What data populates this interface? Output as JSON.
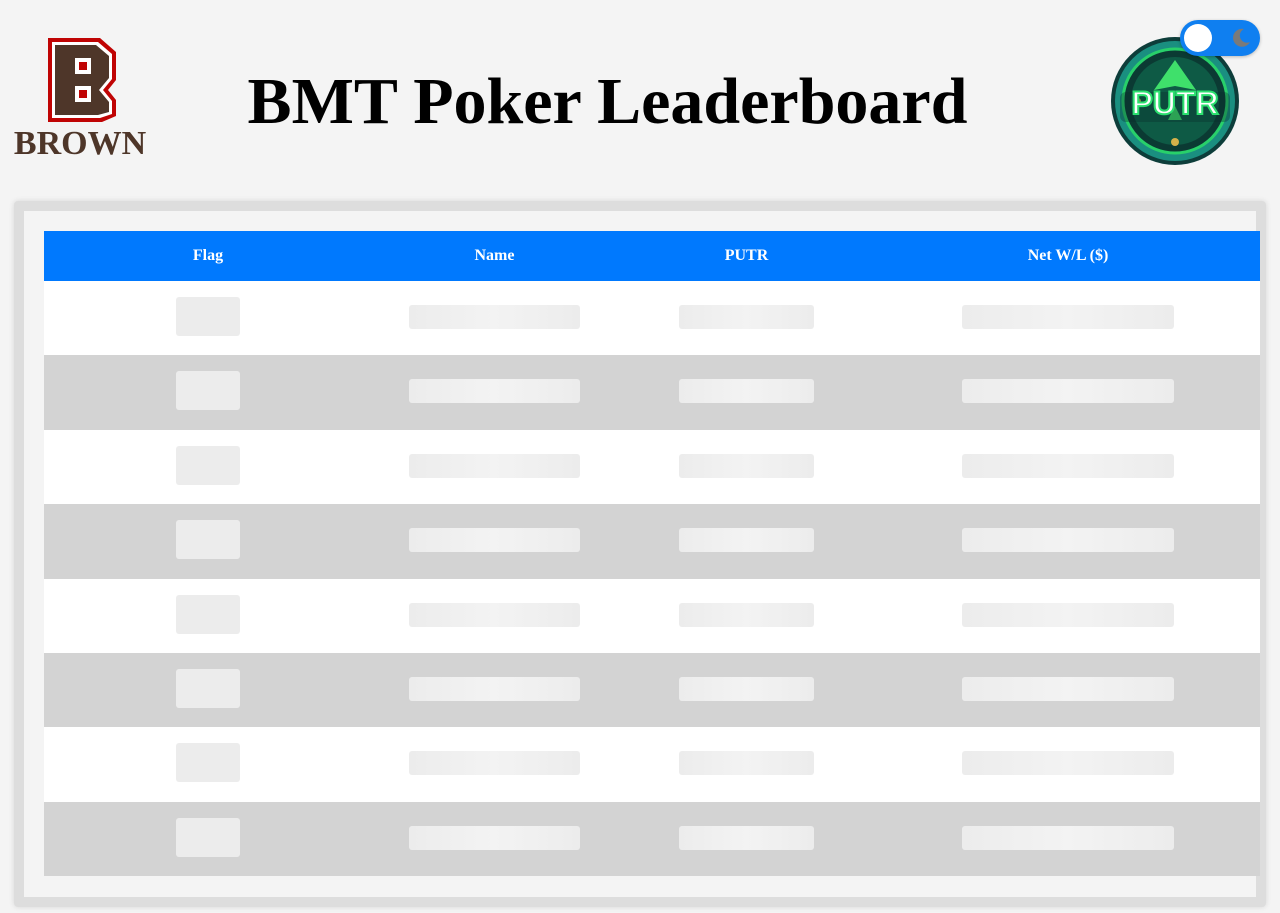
{
  "header": {
    "title": "BMT Poker Leaderboard",
    "left_logo": {
      "icon": "brown-b-logo-icon",
      "text": "BROWN",
      "colors": {
        "brown": "#4e3629",
        "red": "#c00404"
      }
    },
    "right_logo": {
      "icon": "putr-chip-logo-icon",
      "text": "PUTR",
      "colors": {
        "green": "#1fae4b",
        "teal": "#0d5f5a"
      }
    },
    "theme_toggle": {
      "icon": "moon-icon",
      "state": "light"
    }
  },
  "table": {
    "columns": [
      "Flag",
      "Name",
      "PUTR",
      "Net W/L ($)"
    ],
    "loading": true,
    "placeholder_rows": 8
  },
  "colors": {
    "header_bg": "#0079fe",
    "row_odd": "#ffffff",
    "row_even": "#d3d3d3",
    "page_bg": "#f4f4f4",
    "toggle_bg": "#0f7ff0"
  }
}
